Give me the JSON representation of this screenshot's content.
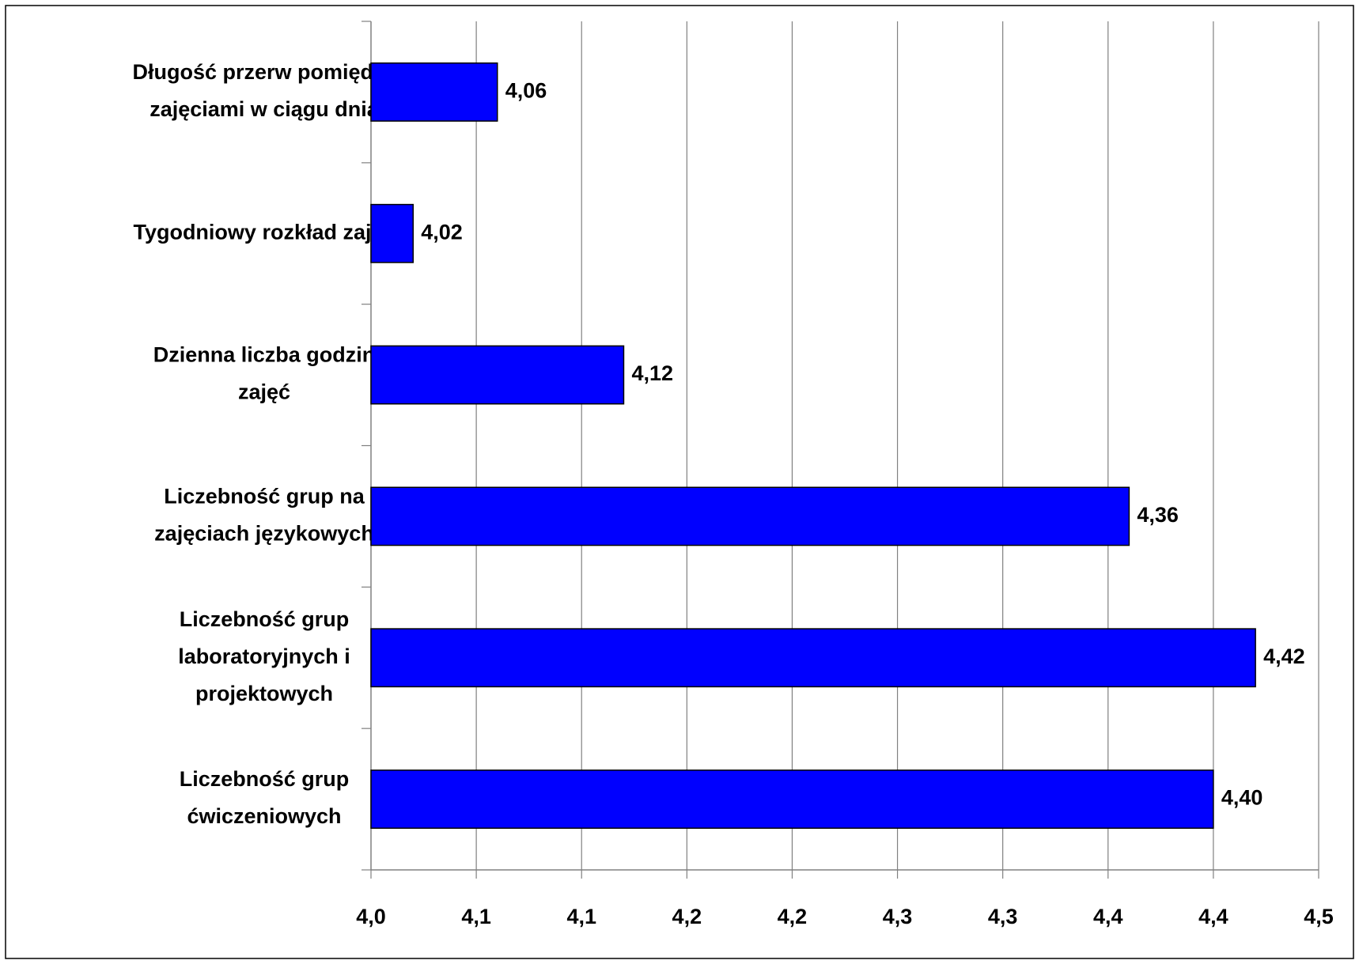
{
  "chart_data": {
    "type": "bar",
    "orientation": "horizontal",
    "categories": [
      [
        "Długość przerw pomiędzy",
        "zajęciami w ciągu dnia"
      ],
      [
        "Tygodniowy rozkład zajęć"
      ],
      [
        "Dzienna liczba godzin",
        "zajęć"
      ],
      [
        "Liczebność grup na",
        "zajęciach językowych"
      ],
      [
        "Liczebność grup",
        "laboratoryjnych i",
        "projektowych"
      ],
      [
        "Liczebność grup",
        "ćwiczeniowych"
      ]
    ],
    "values": [
      4.06,
      4.02,
      4.12,
      4.36,
      4.42,
      4.4
    ],
    "value_labels": [
      "4,06",
      "4,02",
      "4,12",
      "4,36",
      "4,42",
      "4,40"
    ],
    "color": "#0000ff",
    "xlim": [
      4.0,
      4.45
    ],
    "xticks": [
      {
        "value": 4.0,
        "label": "4,0"
      },
      {
        "value": 4.05,
        "label": "4,1"
      },
      {
        "value": 4.1,
        "label": "4,1"
      },
      {
        "value": 4.15,
        "label": "4,2"
      },
      {
        "value": 4.2,
        "label": "4,2"
      },
      {
        "value": 4.25,
        "label": "4,3"
      },
      {
        "value": 4.3,
        "label": "4,3"
      },
      {
        "value": 4.35,
        "label": "4,4"
      },
      {
        "value": 4.4,
        "label": "4,4"
      },
      {
        "value": 4.45,
        "label": "4,5"
      }
    ],
    "grid": true
  }
}
